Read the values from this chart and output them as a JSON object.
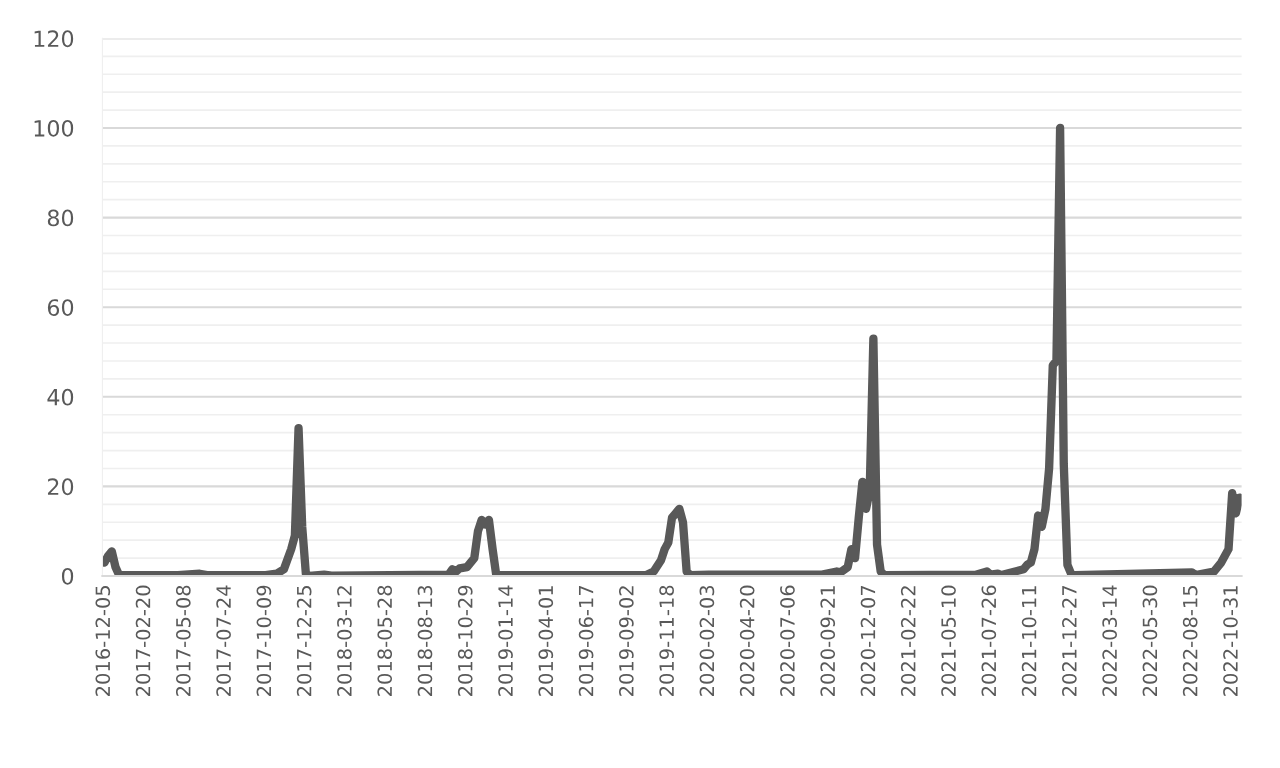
{
  "chart_data": {
    "type": "line",
    "x": [
      "2016-12-05",
      "2016-12-12",
      "2016-12-19",
      "2016-12-26",
      "2017-01-02",
      "2017-04-24",
      "2017-06-05",
      "2017-06-19",
      "2017-10-09",
      "2017-10-30",
      "2017-11-13",
      "2017-11-27",
      "2017-12-04",
      "2017-12-11",
      "2017-12-18",
      "2017-12-25",
      "2018-01-01",
      "2018-01-29",
      "2018-02-12",
      "2018-09-24",
      "2018-10-01",
      "2018-10-08",
      "2018-10-15",
      "2018-10-29",
      "2018-11-05",
      "2018-11-12",
      "2018-11-19",
      "2018-11-26",
      "2018-12-03",
      "2018-12-10",
      "2018-12-17",
      "2018-12-24",
      "2019-10-07",
      "2019-10-21",
      "2019-11-04",
      "2019-11-11",
      "2019-11-18",
      "2019-11-25",
      "2019-12-02",
      "2019-12-09",
      "2019-12-16",
      "2019-12-23",
      "2019-12-30",
      "2020-02-03",
      "2020-09-07",
      "2020-10-05",
      "2020-10-12",
      "2020-10-26",
      "2020-11-02",
      "2020-11-09",
      "2020-11-16",
      "2020-11-23",
      "2020-11-30",
      "2020-12-07",
      "2020-12-14",
      "2020-12-21",
      "2020-12-28",
      "2021-01-04",
      "2021-06-28",
      "2021-07-19",
      "2021-07-26",
      "2021-08-09",
      "2021-08-16",
      "2021-09-27",
      "2021-10-04",
      "2021-10-11",
      "2021-10-18",
      "2021-10-25",
      "2021-11-01",
      "2021-11-08",
      "2021-11-15",
      "2021-11-22",
      "2021-11-29",
      "2021-12-06",
      "2021-12-13",
      "2021-12-20",
      "2021-12-27",
      "2022-01-03",
      "2022-08-15",
      "2022-08-22",
      "2022-09-26",
      "2022-10-10",
      "2022-10-24",
      "2022-10-31",
      "2022-11-07",
      "2022-11-14"
    ],
    "series": [
      {
        "color": "#595959",
        "values": [
          3,
          4.5,
          5.5,
          2,
          0.2,
          0.2,
          0.5,
          0.2,
          0.2,
          0.5,
          1.5,
          6,
          9,
          33,
          11,
          0.5,
          0,
          0.3,
          0.1,
          0.3,
          1.5,
          1,
          1.7,
          2,
          3,
          4,
          10,
          12.5,
          11.5,
          12.5,
          6,
          0.2,
          0.2,
          1,
          3.5,
          6,
          7.5,
          13,
          14,
          15,
          12,
          1,
          0.2,
          0.3,
          0.3,
          1,
          0.8,
          2,
          6,
          4,
          13,
          21,
          15,
          19,
          53,
          7,
          1,
          0.2,
          0.3,
          1,
          0.3,
          0.5,
          0.2,
          1.5,
          2.5,
          3,
          6,
          13.5,
          11,
          15,
          24,
          47,
          48,
          100,
          25,
          2.5,
          0.5,
          0.2,
          0.8,
          0.2,
          1,
          3,
          6,
          18.5,
          14,
          17.5
        ]
      }
    ],
    "xlim": [
      "2016-12-01",
      "2022-11-18"
    ],
    "xticks": [
      "2016-12-05",
      "2017-02-20",
      "2017-05-08",
      "2017-07-24",
      "2017-10-09",
      "2017-12-25",
      "2018-03-12",
      "2018-05-28",
      "2018-08-13",
      "2018-10-29",
      "2019-01-14",
      "2019-04-01",
      "2019-06-17",
      "2019-09-02",
      "2019-11-18",
      "2020-02-03",
      "2020-04-20",
      "2020-07-06",
      "2020-09-21",
      "2020-12-07",
      "2021-02-22",
      "2021-05-10",
      "2021-07-26",
      "2021-10-11",
      "2021-12-27",
      "2022-03-14",
      "2022-05-30",
      "2022-08-15",
      "2022-10-31"
    ],
    "ylim": [
      0,
      120
    ],
    "yticks": [
      0,
      {
        "value": 4,
        "label": null
      },
      {
        "value": 8,
        "label": null
      },
      {
        "value": 12,
        "label": null
      },
      {
        "value": 16,
        "label": null
      },
      20,
      {
        "value": 24,
        "label": null
      },
      {
        "value": 28,
        "label": null
      },
      {
        "value": 32,
        "label": null
      },
      {
        "value": 36,
        "label": null
      },
      40,
      {
        "value": 44,
        "label": null
      },
      {
        "value": 48,
        "label": null
      },
      {
        "value": 52,
        "label": null
      },
      {
        "value": 56,
        "label": null
      },
      60,
      {
        "value": 64,
        "label": null
      },
      {
        "value": 68,
        "label": null
      },
      {
        "value": 72,
        "label": null
      },
      {
        "value": 76,
        "label": null
      },
      80,
      {
        "value": 84,
        "label": null
      },
      {
        "value": 88,
        "label": null
      },
      {
        "value": 92,
        "label": null
      },
      {
        "value": 96,
        "label": null
      },
      100,
      {
        "value": 104,
        "label": null
      },
      {
        "value": 108,
        "label": null
      },
      {
        "value": 112,
        "label": null
      },
      {
        "value": 116,
        "label": null
      },
      120
    ],
    "grid": "y",
    "marker": "none",
    "line_style": "solid"
  }
}
